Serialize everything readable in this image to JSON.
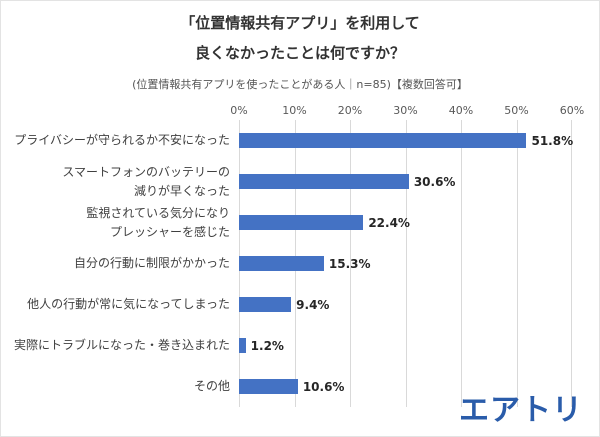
{
  "title": {
    "line1": "「位置情報共有アプリ」を利用して",
    "line2": "良くなかったことは何ですか？"
  },
  "subtitle": "(位置情報共有アプリを使ったことがある人｜n=85)【複数回答可】",
  "logo_text": "エアトリ",
  "colors": {
    "bar": "#4472C4",
    "grid": "#d9d9d9",
    "logo": "#2a5caa"
  },
  "chart_data": {
    "type": "bar",
    "orientation": "horizontal",
    "title": "「位置情報共有アプリ」を利用して良くなかったことは何ですか？",
    "subtitle": "(位置情報共有アプリを使ったことがある人｜n=85)【複数回答可】",
    "categories": [
      [
        "プライバシーが守られるか不安になった"
      ],
      [
        "スマートフォンのバッテリーの",
        "減りが早くなった"
      ],
      [
        "監視されている気分になり",
        "プレッシャーを感じた"
      ],
      [
        "自分の行動に制限がかかった"
      ],
      [
        "他人の行動が常に気になってしまった"
      ],
      [
        "実際にトラブルになった・巻き込まれた"
      ],
      [
        "その他"
      ]
    ],
    "values": [
      51.8,
      30.6,
      22.4,
      15.3,
      9.4,
      1.2,
      10.6
    ],
    "value_labels": [
      "51.8%",
      "30.6%",
      "22.4%",
      "15.3%",
      "9.4%",
      "1.2%",
      "10.6%"
    ],
    "xlim": [
      0,
      60
    ],
    "x_ticks": [
      "0%",
      "10%",
      "20%",
      "30%",
      "40%",
      "50%",
      "60%"
    ],
    "grid": true,
    "legend": "none"
  }
}
